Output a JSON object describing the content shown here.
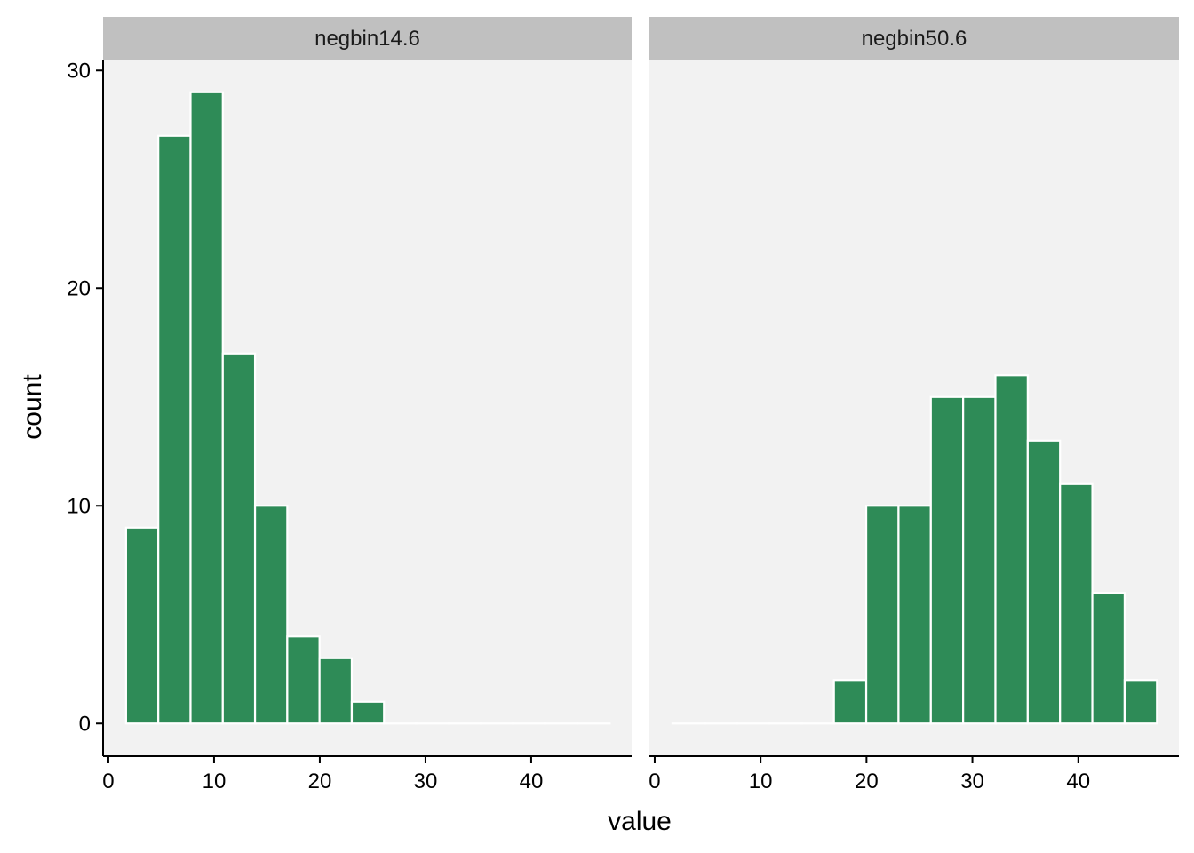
{
  "chart_data": {
    "type": "bar",
    "xlabel": "value",
    "ylabel": "count",
    "xlim": [
      -0.5,
      49.5
    ],
    "ylim": [
      -1.5,
      30.5
    ],
    "x_ticks": [
      0,
      10,
      20,
      30,
      40
    ],
    "y_ticks": [
      0,
      10,
      20,
      30
    ],
    "bin_width": 3.05,
    "bin_centers": [
      3.2,
      6.25,
      9.3,
      12.35,
      15.4,
      18.45,
      21.5,
      24.55,
      27.6,
      30.65,
      33.7,
      36.75,
      39.8,
      42.85,
      45.9
    ],
    "bar_color": "#2e8b57",
    "bar_outline_color": "#ffffff",
    "panel_background": "#f2f2f2",
    "strip_background": "#c0c0c0",
    "grid": false,
    "legend": "none",
    "facets": [
      {
        "label": "negbin14.6",
        "counts": [
          9,
          27,
          29,
          17,
          10,
          4,
          3,
          1,
          0,
          0,
          0,
          0,
          0,
          0,
          0
        ]
      },
      {
        "label": "negbin50.6",
        "counts": [
          0,
          0,
          0,
          0,
          0,
          2,
          10,
          10,
          15,
          15,
          16,
          13,
          11,
          6,
          2
        ]
      }
    ]
  }
}
